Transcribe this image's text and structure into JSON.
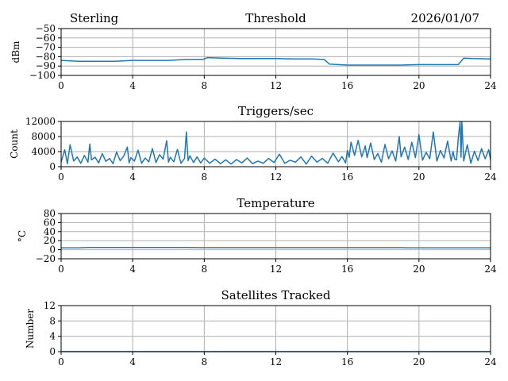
{
  "header": {
    "site": "Sterling",
    "date": "2026/01/07"
  },
  "colors": {
    "series": "#1f77b4",
    "grid": "#b0b0b0"
  },
  "chart_data": [
    {
      "type": "line",
      "title": "Threshold",
      "xlabel": "",
      "ylabel": "dBm",
      "xlim": [
        0,
        24
      ],
      "ylim": [
        -100,
        -50
      ],
      "xticks": [
        "0",
        "4",
        "8",
        "12",
        "16",
        "20",
        "24"
      ],
      "yticks": [
        "−50",
        "−60",
        "−70",
        "−80",
        "−90",
        "−100"
      ],
      "ytick_values": [
        -50,
        -60,
        -70,
        -80,
        -90,
        -100
      ],
      "series": [
        {
          "name": "Threshold",
          "x": [
            0,
            1,
            2,
            3,
            4,
            5,
            6,
            7,
            7.9,
            8.2,
            9,
            10,
            11,
            12,
            13,
            14,
            14.7,
            15.0,
            16,
            17,
            18,
            19,
            20,
            21,
            22.2,
            22.5,
            23,
            24
          ],
          "values": [
            -84,
            -85,
            -85,
            -85,
            -84,
            -84,
            -84,
            -83,
            -83,
            -81,
            -81.5,
            -82,
            -82,
            -82,
            -82.5,
            -82.5,
            -83,
            -88,
            -89,
            -89,
            -89,
            -89,
            -88.5,
            -88.5,
            -88.5,
            -81.5,
            -82,
            -82.5
          ]
        }
      ]
    },
    {
      "type": "line",
      "title": "Triggers/sec",
      "xlabel": "",
      "ylabel": "Count",
      "xlim": [
        0,
        24
      ],
      "ylim": [
        0,
        12000
      ],
      "xticks": [
        "0",
        "4",
        "8",
        "12",
        "16",
        "20",
        "24"
      ],
      "yticks": [
        "12000",
        "8000",
        "4000",
        "0"
      ],
      "ytick_values": [
        12000,
        8000,
        4000,
        0
      ],
      "series": [
        {
          "name": "Triggers/sec",
          "x": [
            0,
            0.2,
            0.35,
            0.5,
            0.7,
            0.9,
            1.1,
            1.3,
            1.5,
            1.6,
            1.7,
            1.9,
            2.1,
            2.3,
            2.5,
            2.7,
            2.9,
            3.1,
            3.3,
            3.5,
            3.7,
            3.8,
            3.9,
            4.1,
            4.3,
            4.5,
            4.7,
            4.9,
            5.1,
            5.3,
            5.5,
            5.7,
            5.9,
            6.0,
            6.1,
            6.3,
            6.5,
            6.7,
            6.9,
            7.0,
            7.1,
            7.2,
            7.4,
            7.6,
            7.8,
            8.0,
            8.3,
            8.6,
            8.9,
            9.2,
            9.5,
            9.8,
            10.1,
            10.4,
            10.7,
            11.0,
            11.3,
            11.6,
            11.9,
            12.2,
            12.5,
            12.8,
            13.1,
            13.4,
            13.7,
            14.0,
            14.3,
            14.6,
            14.9,
            15.2,
            15.5,
            15.7,
            15.9,
            16.0,
            16.1,
            16.2,
            16.4,
            16.6,
            16.8,
            17.0,
            17.1,
            17.3,
            17.5,
            17.7,
            17.9,
            18.1,
            18.3,
            18.5,
            18.7,
            18.9,
            19.0,
            19.2,
            19.4,
            19.6,
            19.8,
            20.0,
            20.2,
            20.4,
            20.6,
            20.8,
            21.0,
            21.2,
            21.4,
            21.6,
            21.8,
            21.9,
            22.0,
            22.1,
            22.2,
            22.3,
            22.35,
            22.4,
            22.5,
            22.7,
            22.9,
            23.1,
            23.3,
            23.5,
            23.7,
            23.9,
            24.0
          ],
          "values": [
            1200,
            4500,
            800,
            5800,
            1500,
            2600,
            900,
            3000,
            1200,
            6000,
            1800,
            2500,
            1000,
            3500,
            1400,
            2200,
            800,
            3900,
            1600,
            2800,
            5200,
            1000,
            2400,
            1500,
            4400,
            900,
            2300,
            1300,
            4800,
            1100,
            3200,
            2000,
            6900,
            1200,
            2500,
            1300,
            4600,
            900,
            2200,
            9200,
            1600,
            2900,
            1100,
            2600,
            1000,
            2300,
            900,
            2000,
            800,
            1800,
            700,
            1900,
            1000,
            2300,
            800,
            1500,
            900,
            2200,
            1100,
            3300,
            900,
            1700,
            1200,
            2600,
            700,
            2800,
            1200,
            2200,
            900,
            3600,
            1300,
            2700,
            1000,
            4300,
            2500,
            6500,
            3000,
            7000,
            2600,
            5500,
            2400,
            6300,
            1900,
            3500,
            1200,
            5900,
            2100,
            4200,
            1500,
            8000,
            2600,
            5200,
            1900,
            6500,
            2400,
            8500,
            1700,
            3800,
            2100,
            9200,
            1500,
            4300,
            2300,
            6800,
            1500,
            4000,
            2000,
            1800,
            7700,
            12000,
            2500,
            11800,
            1500,
            5800,
            900,
            4100,
            1600,
            4800,
            2100,
            4500,
            1800
          ]
        }
      ]
    },
    {
      "type": "line",
      "title": "Temperature",
      "xlabel": "",
      "ylabel": "°C",
      "xlim": [
        0,
        24
      ],
      "ylim": [
        -20,
        80
      ],
      "xticks": [
        "0",
        "4",
        "8",
        "12",
        "16",
        "20",
        "24"
      ],
      "yticks": [
        "80",
        "60",
        "40",
        "20",
        "0",
        "−20"
      ],
      "ytick_values": [
        80,
        60,
        40,
        20,
        0,
        -20
      ],
      "series": [
        {
          "name": "Temperature",
          "x": [
            0,
            1,
            1.5,
            2,
            3,
            4,
            5,
            6,
            7,
            8,
            9,
            10,
            11,
            12,
            13,
            14,
            15,
            16,
            17,
            18,
            19,
            19.5,
            20,
            21,
            22,
            23,
            24
          ],
          "values": [
            4,
            4,
            5,
            5,
            5,
            5,
            5,
            5,
            5,
            4.5,
            4.5,
            4.5,
            4.5,
            4.5,
            4.5,
            4.5,
            4.5,
            4.5,
            4.5,
            4.5,
            4.5,
            4,
            4,
            4,
            4,
            4,
            4
          ]
        }
      ]
    },
    {
      "type": "line",
      "title": "Satellites Tracked",
      "xlabel": "",
      "ylabel": "Number",
      "xlim": [
        0,
        24
      ],
      "ylim": [
        0,
        12
      ],
      "xticks": [
        "0",
        "4",
        "8",
        "12",
        "16",
        "20",
        "24"
      ],
      "yticks": [
        "12",
        "8",
        "4",
        "0"
      ],
      "ytick_values": [
        12,
        8,
        4,
        0
      ],
      "series": [
        {
          "name": "Satellites Tracked",
          "x": [
            0,
            24
          ],
          "values": [
            0,
            0
          ]
        }
      ]
    }
  ]
}
